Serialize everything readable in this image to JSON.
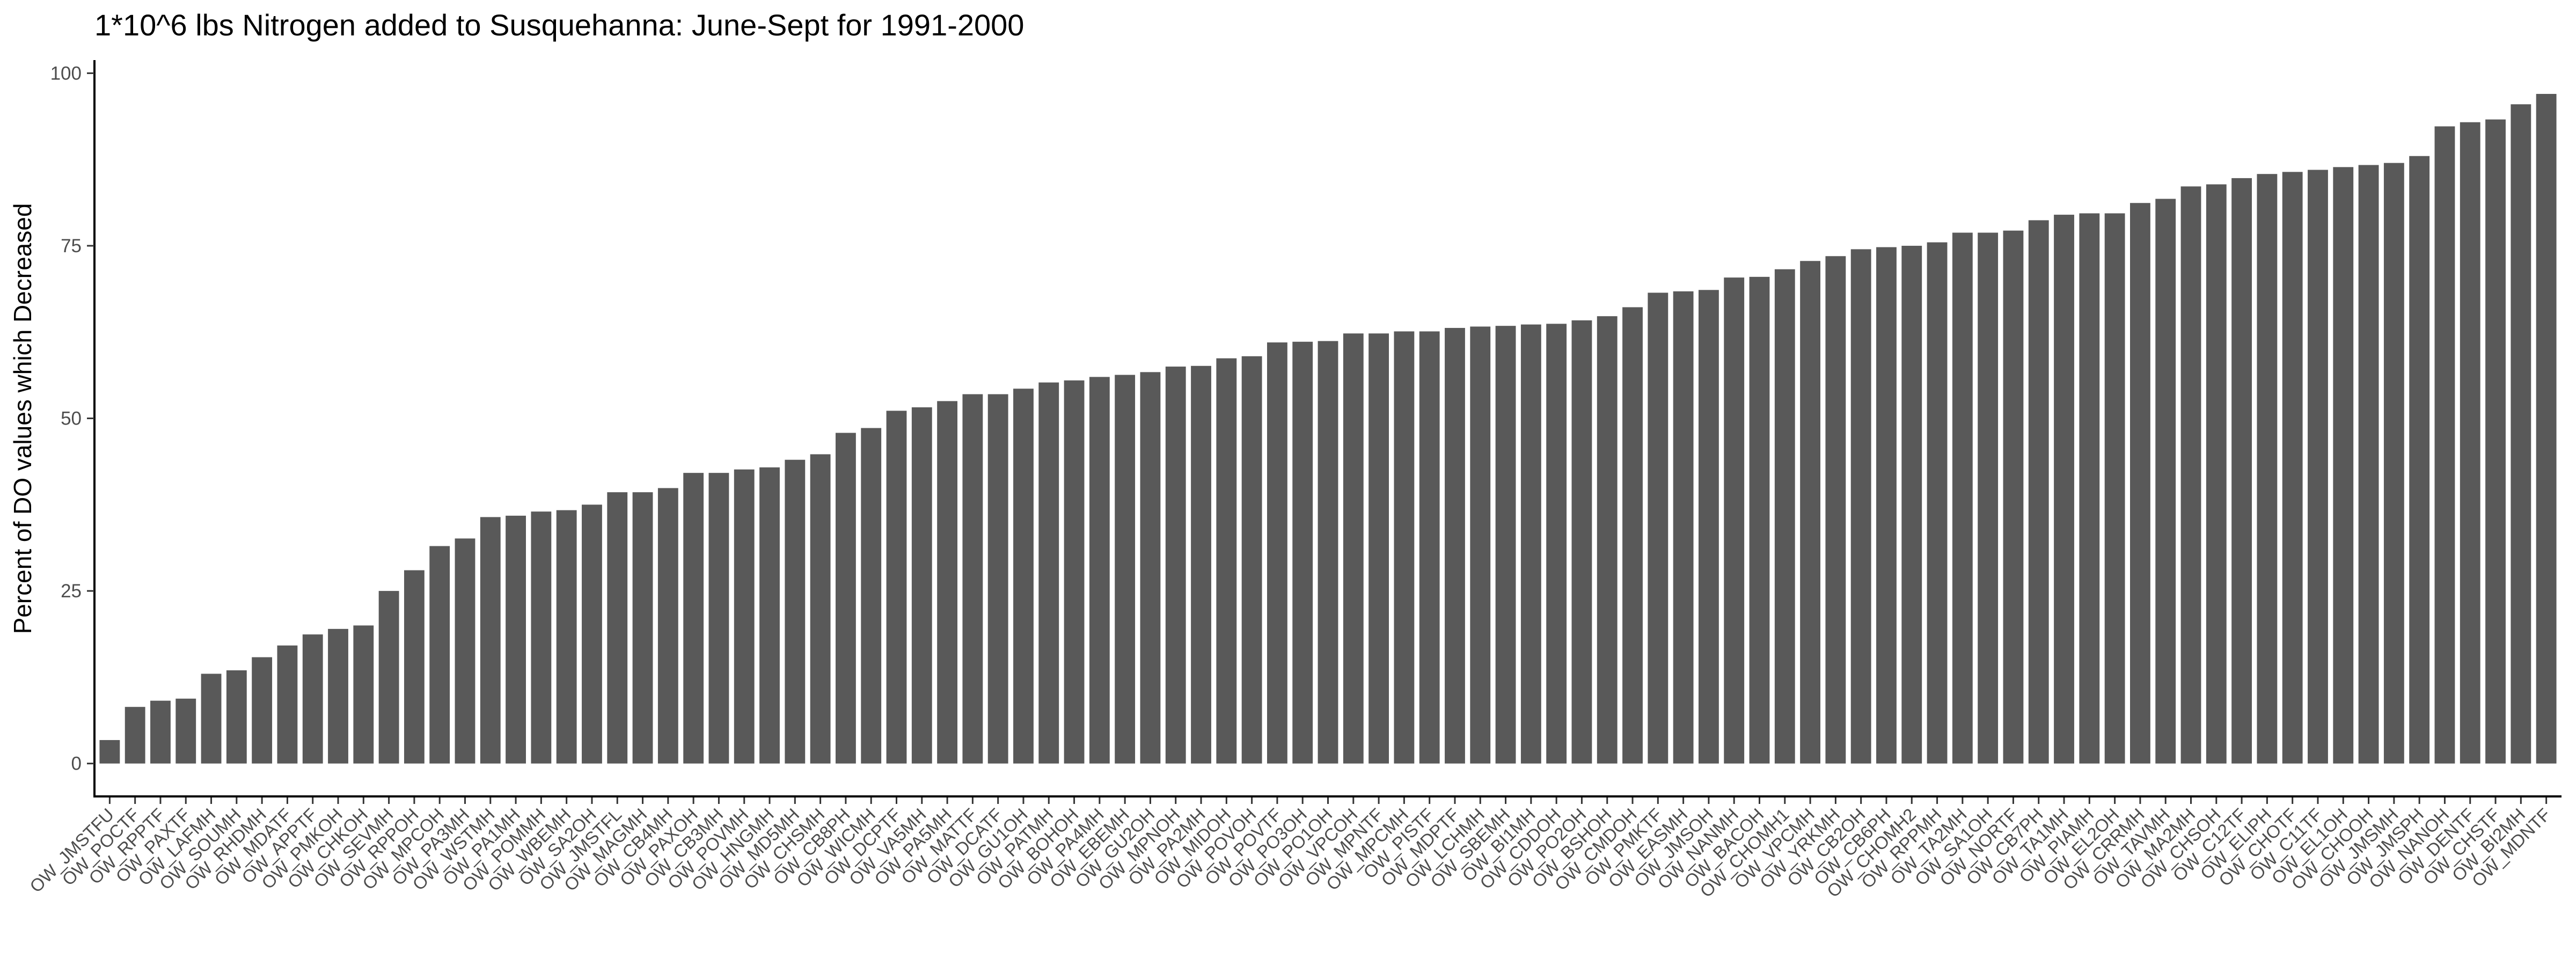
{
  "chart_data": {
    "type": "bar",
    "title": "1*10^6 lbs Nitrogen added to Susquehanna: June-Sept for 1991-2000",
    "xlabel": "",
    "ylabel": "Percent of DO values which Decreased",
    "ylim": [
      0,
      100
    ],
    "yticks": [
      0,
      25,
      50,
      75,
      100
    ],
    "grid": false,
    "bar_color": "#595959",
    "categories": [
      "OW_JMSTFU",
      "OW_POCTF",
      "OW_RPPTF",
      "OW_PAXTF",
      "OW_LAFMH",
      "OW_SOUMH",
      "OW_RHDMH",
      "OW_MDATF",
      "OW_APPTF",
      "OW_PMKOH",
      "OW_CHKOH",
      "OW_SEVMH",
      "OW_RPPOH",
      "OW_MPCOH",
      "OW_PA3MH",
      "OW_WSTMH",
      "OW_PA1MH",
      "OW_POMMH",
      "OW_WBEMH",
      "OW_SA2OH",
      "OW_JMSTFL",
      "OW_MAGMH",
      "OW_CB4MH",
      "OW_PAXOH",
      "OW_CB3MH",
      "OW_POVMH",
      "OW_HNGMH",
      "OW_MD5MH",
      "OW_CHSMH",
      "OW_CB8PH",
      "OW_WICMH",
      "OW_DCPTF",
      "OW_VA5MH",
      "OW_PA5MH",
      "OW_MATTF",
      "OW_DCATF",
      "OW_GU1OH",
      "OW_PATMH",
      "OW_BOHOH",
      "OW_PA4MH",
      "OW_EBEMH",
      "OW_GU2OH",
      "OW_MPNOH",
      "OW_PA2MH",
      "OW_MIDOH",
      "OW_POVOH",
      "OW_POVTF",
      "OW_PO3OH",
      "OW_PO1OH",
      "OW_VPCOH",
      "OW_MPNTF",
      "OW_MPCMH",
      "OW_PISTF",
      "OW_MDPTF",
      "OW_LCHMH",
      "OW_SBEMH",
      "OW_BI1MH",
      "OW_CDDOH",
      "OW_PO2OH",
      "OW_BSHOH",
      "OW_CMDOH",
      "OW_PMKTF",
      "OW_EASMH",
      "OW_JMSOH",
      "OW_NANMH",
      "OW_BACOH",
      "OW_CHOMH1",
      "OW_VPCMH",
      "OW_YRKMH",
      "OW_CB2OH",
      "OW_CB6PH",
      "OW_CHOMH2",
      "OW_RPPMH",
      "OW_TA2MH",
      "OW_SA1OH",
      "OW_NORTF",
      "OW_CB7PH",
      "OW_TA1MH",
      "OW_PIAMH",
      "OW_EL2OH",
      "OW_CRRMH",
      "OW_TAVMH",
      "OW_MA2MH",
      "OW_CHSOH",
      "OW_C12TF",
      "OW_ELIPH",
      "OW_CHOTF",
      "OW_C11TF",
      "OW_EL1OH",
      "OW_CHOOH",
      "OW_JMSMH",
      "OW_JMSPH",
      "OW_NANOH",
      "OW_DENTF",
      "OW_CHSTF",
      "OW_BI2MH",
      "OW_MDNTF"
    ],
    "values": [
      3.4,
      8.2,
      9.1,
      9.4,
      13.0,
      13.5,
      15.4,
      17.1,
      18.7,
      19.5,
      20.0,
      25.0,
      28.0,
      31.5,
      32.6,
      35.7,
      35.9,
      36.5,
      36.7,
      37.5,
      39.3,
      39.3,
      39.9,
      42.1,
      42.1,
      42.6,
      42.9,
      44.0,
      44.8,
      47.9,
      48.6,
      51.1,
      51.6,
      52.5,
      53.5,
      53.5,
      54.3,
      55.2,
      55.5,
      56.0,
      56.3,
      56.7,
      57.5,
      57.6,
      58.7,
      59.0,
      61.0,
      61.1,
      61.2,
      62.3,
      62.3,
      62.6,
      62.6,
      63.1,
      63.3,
      63.4,
      63.6,
      63.7,
      64.2,
      64.8,
      66.1,
      68.2,
      68.4,
      68.6,
      70.4,
      70.5,
      71.6,
      72.8,
      73.5,
      74.5,
      74.8,
      75.0,
      75.5,
      76.9,
      76.9,
      77.2,
      78.7,
      79.5,
      79.7,
      79.7,
      81.2,
      81.8,
      83.6,
      83.9,
      84.8,
      85.4,
      85.7,
      86.0,
      86.4,
      86.7,
      87.0,
      88.0,
      92.3,
      92.9,
      93.3,
      95.5,
      97.0
    ]
  }
}
